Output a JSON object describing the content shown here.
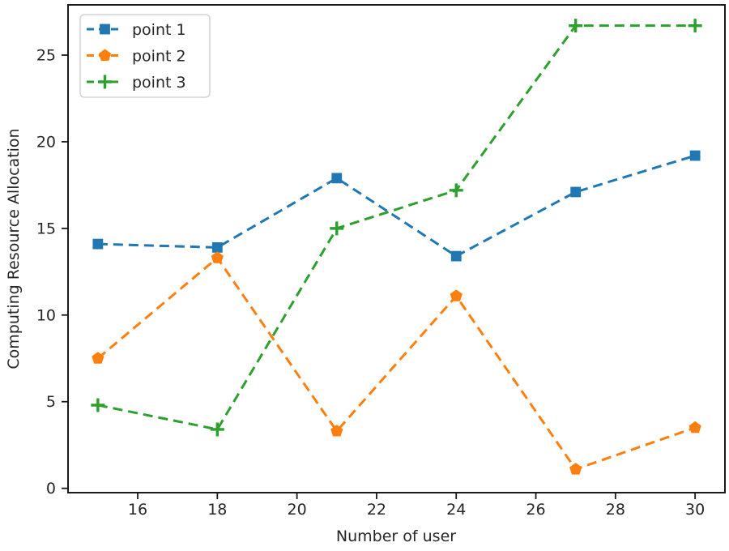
{
  "chart_data": {
    "type": "line",
    "title": "",
    "xlabel": "Number of user",
    "ylabel": "Computing Resource Allocation",
    "x": [
      15,
      18,
      21,
      24,
      27,
      30
    ],
    "series": [
      {
        "name": "point 1",
        "values": [
          14.1,
          13.9,
          17.9,
          13.4,
          17.1,
          19.2
        ],
        "color": "#1f77b4",
        "marker": "square",
        "linestyle": "dashed"
      },
      {
        "name": "point 2",
        "values": [
          7.5,
          13.3,
          3.3,
          11.1,
          1.1,
          3.5
        ],
        "color": "#ff7f0e",
        "marker": "pentagon",
        "linestyle": "dashed"
      },
      {
        "name": "point 3",
        "values": [
          4.8,
          3.4,
          15.0,
          17.2,
          26.7,
          26.7
        ],
        "color": "#2ca02c",
        "marker": "plus",
        "linestyle": "dashed"
      }
    ],
    "xticks": [
      16,
      18,
      20,
      22,
      24,
      26,
      28,
      30
    ],
    "yticks": [
      0,
      5,
      10,
      15,
      20,
      25
    ],
    "xlim": [
      14.25,
      30.75
    ],
    "ylim": [
      -0.25,
      27.9
    ],
    "grid": false,
    "legend_position": "upper-left",
    "axis_color": "#1a1a1a",
    "text_color": "#262626",
    "background_color": "#ffffff"
  }
}
